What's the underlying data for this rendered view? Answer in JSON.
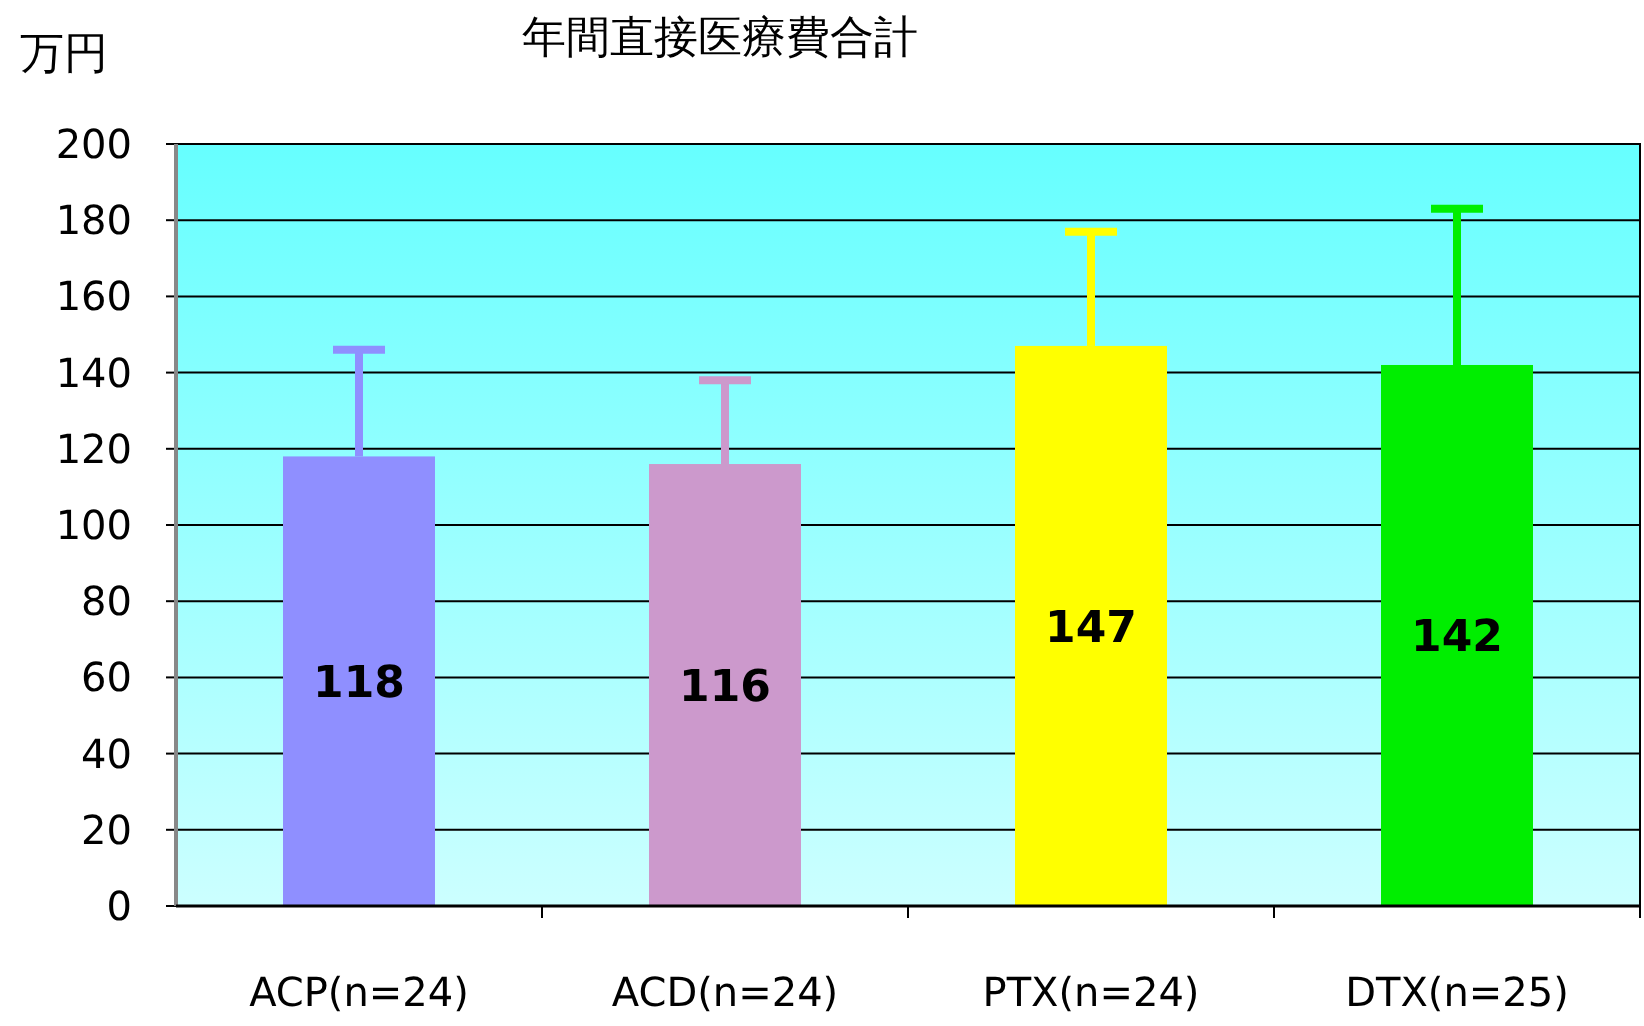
{
  "chart_data": {
    "type": "bar",
    "title": "年間直接医療費合計",
    "ylabel": "万円",
    "categories": [
      "ACP(n=24)",
      "ACD(n=24)",
      "PTX(n=24)",
      "DTX(n=25)"
    ],
    "values": [
      118,
      116,
      147,
      142
    ],
    "errors": [
      28,
      22,
      30,
      41
    ],
    "colors": [
      "#8f8fff",
      "#cc99cc",
      "#ffff00",
      "#00ee00"
    ],
    "ylim": [
      0,
      200
    ],
    "yticks": [
      0,
      20,
      40,
      60,
      80,
      100,
      120,
      140,
      160,
      180,
      200
    ],
    "grid": "y",
    "data_labels": true
  }
}
